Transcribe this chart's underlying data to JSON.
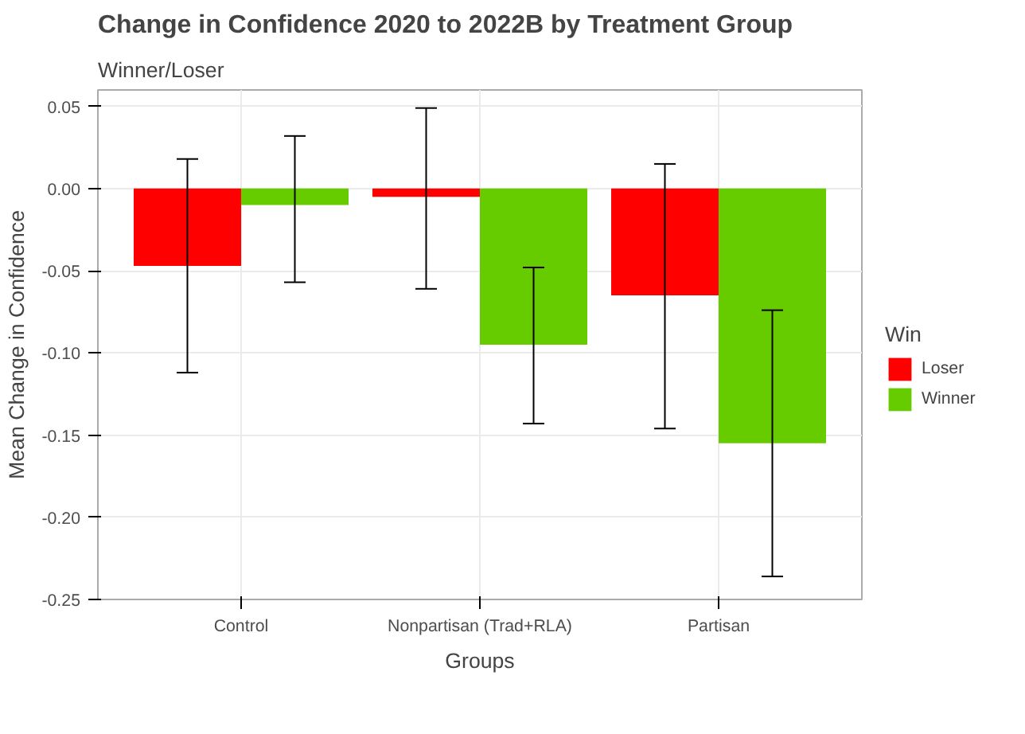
{
  "chart_data": {
    "type": "bar",
    "title": "Change in Confidence 2020 to 2022B by Treatment Group",
    "subtitle": "Winner/Loser",
    "xlabel": "Groups",
    "ylabel": "Mean Change in Confidence",
    "legend_title": "Win",
    "categories": [
      "Control",
      "Nonpartisan (Trad+RLA)",
      "Partisan"
    ],
    "series": [
      {
        "name": "Loser",
        "color": "#ff0000",
        "values": [
          -0.047,
          -0.005,
          -0.065
        ],
        "errors": [
          [
            -0.112,
            0.018
          ],
          [
            -0.061,
            0.049
          ],
          [
            -0.146,
            0.015
          ]
        ]
      },
      {
        "name": "Winner",
        "color": "#66cc00",
        "values": [
          -0.01,
          -0.095,
          -0.155
        ],
        "errors": [
          [
            -0.057,
            0.032
          ],
          [
            -0.143,
            -0.048
          ],
          [
            -0.236,
            -0.074
          ]
        ]
      }
    ],
    "ylim": [
      -0.25,
      0.06
    ],
    "yticks": [
      {
        "value": 0.05,
        "label": "0.05"
      },
      {
        "value": 0,
        "label": "0.00"
      },
      {
        "value": -0.05,
        "label": "-0.05"
      },
      {
        "value": -0.1,
        "label": "-0.10"
      },
      {
        "value": -0.15,
        "label": "-0.15"
      },
      {
        "value": -0.2,
        "label": "-0.20"
      },
      {
        "value": -0.25,
        "label": "-0.25"
      }
    ],
    "grid": true,
    "legend": "right"
  }
}
